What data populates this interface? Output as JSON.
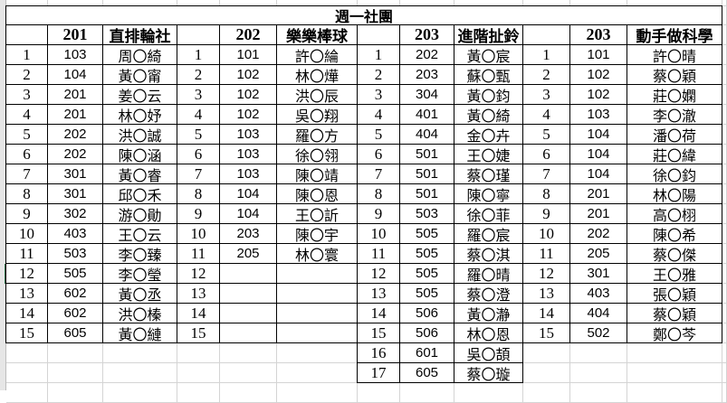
{
  "title": "週一社團",
  "blocks": [
    {
      "class_header": "201",
      "club": "直排輪社",
      "rows": [
        {
          "no": "1",
          "cls": "103",
          "name": "周〇綺"
        },
        {
          "no": "2",
          "cls": "104",
          "name": "黃〇甯"
        },
        {
          "no": "3",
          "cls": "201",
          "name": "姜〇云"
        },
        {
          "no": "4",
          "cls": "201",
          "name": "林〇妤"
        },
        {
          "no": "5",
          "cls": "202",
          "name": "洪〇誠"
        },
        {
          "no": "6",
          "cls": "202",
          "name": "陳〇涵"
        },
        {
          "no": "7",
          "cls": "301",
          "name": "黃〇睿"
        },
        {
          "no": "8",
          "cls": "301",
          "name": "邱〇禾"
        },
        {
          "no": "9",
          "cls": "302",
          "name": "游〇勛"
        },
        {
          "no": "10",
          "cls": "403",
          "name": "王〇云"
        },
        {
          "no": "11",
          "cls": "503",
          "name": "李〇臻"
        },
        {
          "no": "12",
          "cls": "505",
          "name": "李〇瑩"
        },
        {
          "no": "13",
          "cls": "602",
          "name": "黃〇丞"
        },
        {
          "no": "14",
          "cls": "602",
          "name": "洪〇榛"
        },
        {
          "no": "15",
          "cls": "605",
          "name": "黃〇縺"
        }
      ]
    },
    {
      "class_header": "202",
      "club": "樂樂棒球",
      "rows": [
        {
          "no": "1",
          "cls": "101",
          "name": "許〇綸"
        },
        {
          "no": "2",
          "cls": "102",
          "name": "林〇燁"
        },
        {
          "no": "3",
          "cls": "102",
          "name": "洪〇辰"
        },
        {
          "no": "4",
          "cls": "102",
          "name": "吳〇翔"
        },
        {
          "no": "5",
          "cls": "103",
          "name": "羅〇方"
        },
        {
          "no": "6",
          "cls": "103",
          "name": "徐〇翎"
        },
        {
          "no": "7",
          "cls": "103",
          "name": "陳〇靖"
        },
        {
          "no": "8",
          "cls": "104",
          "name": "陳〇恩"
        },
        {
          "no": "9",
          "cls": "104",
          "name": "王〇訢"
        },
        {
          "no": "10",
          "cls": "203",
          "name": "陳〇宇"
        },
        {
          "no": "11",
          "cls": "205",
          "name": "林〇寰"
        },
        {
          "no": "12",
          "cls": "",
          "name": ""
        },
        {
          "no": "13",
          "cls": "",
          "name": ""
        },
        {
          "no": "14",
          "cls": "",
          "name": ""
        },
        {
          "no": "15",
          "cls": "",
          "name": ""
        }
      ]
    },
    {
      "class_header": "203",
      "club": "進階扯鈴",
      "rows": [
        {
          "no": "1",
          "cls": "202",
          "name": "黃〇宸"
        },
        {
          "no": "2",
          "cls": "203",
          "name": "蘇〇甄"
        },
        {
          "no": "3",
          "cls": "304",
          "name": "黃〇鈞"
        },
        {
          "no": "4",
          "cls": "401",
          "name": "黃〇綺"
        },
        {
          "no": "5",
          "cls": "404",
          "name": "金〇卉"
        },
        {
          "no": "6",
          "cls": "501",
          "name": "王〇婕"
        },
        {
          "no": "7",
          "cls": "501",
          "name": "蔡〇瑾"
        },
        {
          "no": "8",
          "cls": "501",
          "name": "陳〇寧"
        },
        {
          "no": "9",
          "cls": "503",
          "name": "徐〇菲"
        },
        {
          "no": "10",
          "cls": "505",
          "name": "羅〇宸"
        },
        {
          "no": "11",
          "cls": "505",
          "name": "蔡〇淇"
        },
        {
          "no": "12",
          "cls": "505",
          "name": "羅〇晴"
        },
        {
          "no": "13",
          "cls": "505",
          "name": "蔡〇澄"
        },
        {
          "no": "14",
          "cls": "506",
          "name": "黃〇瀞"
        },
        {
          "no": "15",
          "cls": "506",
          "name": "林〇恩"
        },
        {
          "no": "16",
          "cls": "601",
          "name": "吳〇頡"
        },
        {
          "no": "17",
          "cls": "605",
          "name": "蔡〇璇"
        }
      ]
    },
    {
      "class_header": "203",
      "club": "動手做科學",
      "rows": [
        {
          "no": "1",
          "cls": "101",
          "name": "許〇晴"
        },
        {
          "no": "2",
          "cls": "102",
          "name": "蔡〇穎"
        },
        {
          "no": "3",
          "cls": "102",
          "name": "莊〇嫻"
        },
        {
          "no": "4",
          "cls": "103",
          "name": "李〇澈"
        },
        {
          "no": "5",
          "cls": "104",
          "name": "潘〇荷"
        },
        {
          "no": "6",
          "cls": "104",
          "name": "莊〇緯"
        },
        {
          "no": "7",
          "cls": "104",
          "name": "徐〇鈞"
        },
        {
          "no": "8",
          "cls": "201",
          "name": "林〇陽"
        },
        {
          "no": "9",
          "cls": "201",
          "name": "高〇栩"
        },
        {
          "no": "10",
          "cls": "202",
          "name": "陳〇希"
        },
        {
          "no": "11",
          "cls": "205",
          "name": "蔡〇傑"
        },
        {
          "no": "12",
          "cls": "301",
          "name": "王〇雅"
        },
        {
          "no": "13",
          "cls": "403",
          "name": "張〇穎"
        },
        {
          "no": "14",
          "cls": "404",
          "name": "蔡〇穎"
        },
        {
          "no": "15",
          "cls": "502",
          "name": "鄭〇芩"
        }
      ]
    }
  ]
}
